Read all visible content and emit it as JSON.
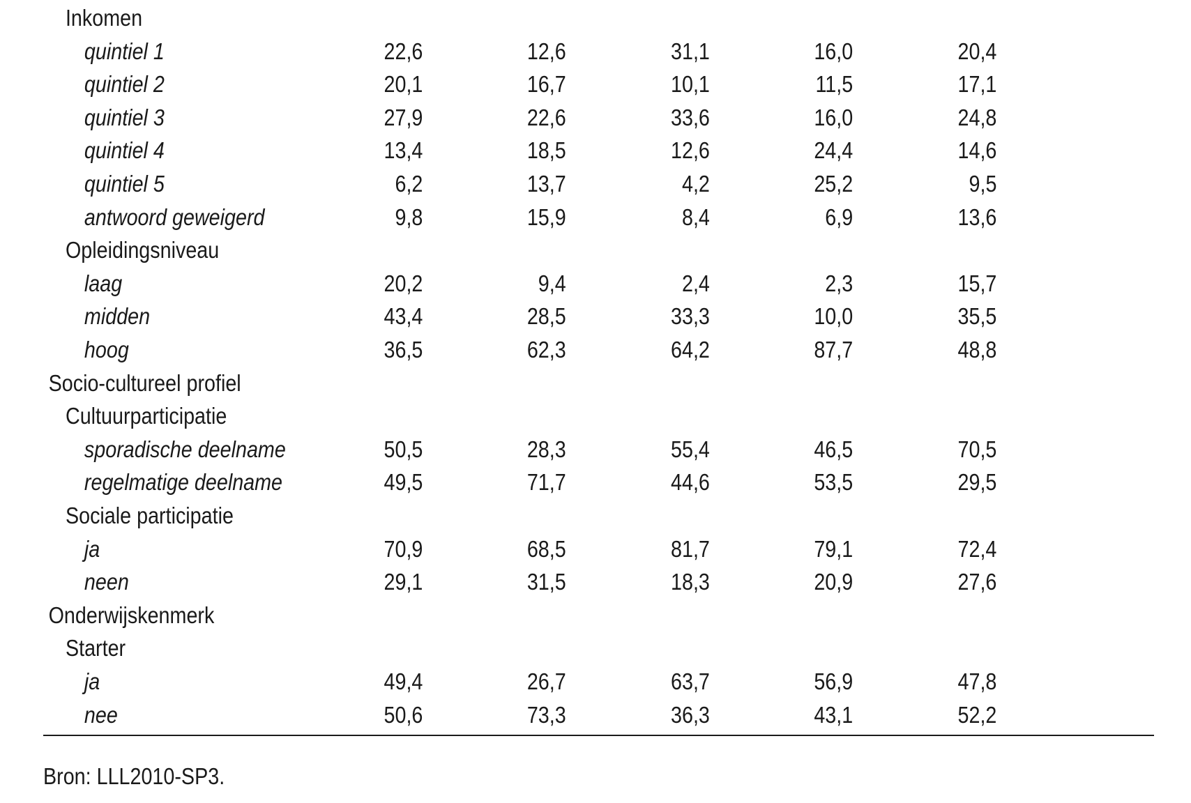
{
  "table": {
    "rows": [
      {
        "level": "group",
        "label": "Inkomen",
        "values": []
      },
      {
        "level": "item",
        "label": "quintiel 1",
        "values": [
          "22,6",
          "12,6",
          "31,1",
          "16,0",
          "20,4"
        ]
      },
      {
        "level": "item",
        "label": "quintiel 2",
        "values": [
          "20,1",
          "16,7",
          "10,1",
          "11,5",
          "17,1"
        ]
      },
      {
        "level": "item",
        "label": "quintiel 3",
        "values": [
          "27,9",
          "22,6",
          "33,6",
          "16,0",
          "24,8"
        ]
      },
      {
        "level": "item",
        "label": "quintiel 4",
        "values": [
          "13,4",
          "18,5",
          "12,6",
          "24,4",
          "14,6"
        ]
      },
      {
        "level": "item",
        "label": "quintiel 5",
        "values": [
          "6,2",
          "13,7",
          "4,2",
          "25,2",
          "9,5"
        ]
      },
      {
        "level": "item",
        "label": "antwoord geweigerd",
        "values": [
          "9,8",
          "15,9",
          "8,4",
          "6,9",
          "13,6"
        ]
      },
      {
        "level": "group",
        "label": "Opleidingsniveau",
        "values": []
      },
      {
        "level": "item",
        "label": "laag",
        "values": [
          "20,2",
          "9,4",
          "2,4",
          "2,3",
          "15,7"
        ]
      },
      {
        "level": "item",
        "label": "midden",
        "values": [
          "43,4",
          "28,5",
          "33,3",
          "10,0",
          "35,5"
        ]
      },
      {
        "level": "item",
        "label": "hoog",
        "values": [
          "36,5",
          "62,3",
          "64,2",
          "87,7",
          "48,8"
        ]
      },
      {
        "level": "section",
        "label": "Socio-cultureel profiel",
        "values": []
      },
      {
        "level": "group",
        "label": "Cultuurparticipatie",
        "values": []
      },
      {
        "level": "item",
        "label": "sporadische deelname",
        "values": [
          "50,5",
          "28,3",
          "55,4",
          "46,5",
          "70,5"
        ]
      },
      {
        "level": "item",
        "label": "regelmatige deelname",
        "values": [
          "49,5",
          "71,7",
          "44,6",
          "53,5",
          "29,5"
        ]
      },
      {
        "level": "group",
        "label": "Sociale participatie",
        "values": []
      },
      {
        "level": "item",
        "label": "ja",
        "values": [
          "70,9",
          "68,5",
          "81,7",
          "79,1",
          "72,4"
        ]
      },
      {
        "level": "item",
        "label": "neen",
        "values": [
          "29,1",
          "31,5",
          "18,3",
          "20,9",
          "27,6"
        ]
      },
      {
        "level": "section",
        "label": "Onderwijskenmerk",
        "values": []
      },
      {
        "level": "group",
        "label": "Starter",
        "values": []
      },
      {
        "level": "item",
        "label": "ja",
        "values": [
          "49,4",
          "26,7",
          "63,7",
          "56,9",
          "47,8"
        ]
      },
      {
        "level": "item",
        "label": "nee",
        "values": [
          "50,6",
          "73,3",
          "36,3",
          "43,1",
          "52,2"
        ]
      }
    ]
  },
  "source": "Bron: LLL2010-SP3."
}
